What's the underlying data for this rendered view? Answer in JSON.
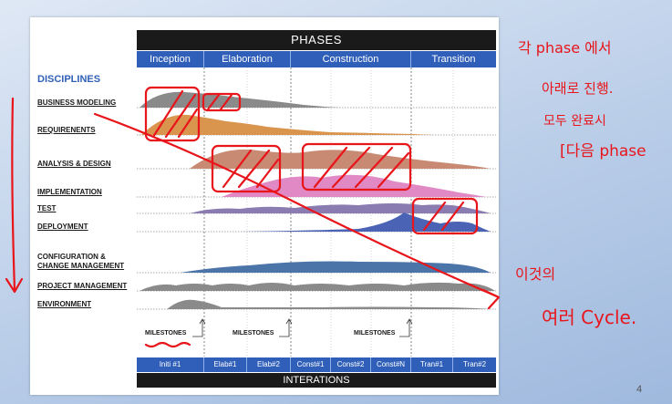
{
  "slide": {
    "phases_title": "PHASES",
    "phases": [
      "Inception",
      "Elaboration",
      "Construction",
      "Transition"
    ],
    "disciplines_title": "DISCIPLINES",
    "disciplines": [
      "BUSINESS MODELING",
      "REQUIRENENTS",
      "ANALYSIS & DESIGN",
      "IMPLEMENTATION",
      "TEST",
      "DEPLOYMENT",
      "CONFIGURATION &",
      "CHANGE MANAGEMENT",
      "PROJECT MANAGEMENT",
      "ENVIRONMENT"
    ],
    "milestone_label": "MILESTONES",
    "iterations": [
      "Initi #1",
      "Elab#1",
      "Elab#2",
      "Const#1",
      "Const#2",
      "Const#N",
      "Tran#1",
      "Tran#2"
    ],
    "iterations_title": "INTERATIONS"
  },
  "annotations": {
    "note_top": [
      "각 phase 에서",
      "아래로 진행.",
      "모두 완료시",
      "[다음 phase"
    ],
    "note_bottom": [
      "이것의",
      "여러 Cycle."
    ]
  },
  "page_number": "4",
  "colors": {
    "phase_blue": "#2f5fb8",
    "header_black": "#1a1a1a",
    "annotation_red": "#e8151b",
    "business_modeling": "#8a8a8a",
    "requirements": "#d9944e",
    "analysis_design": "#c98a74",
    "implementation": "#e089c4",
    "test": "#8a7bb0",
    "deployment": "#4b63b5",
    "configuration": "#4b74a8",
    "project_management": "#8a8a8a",
    "environment": "#8a8a8a"
  }
}
